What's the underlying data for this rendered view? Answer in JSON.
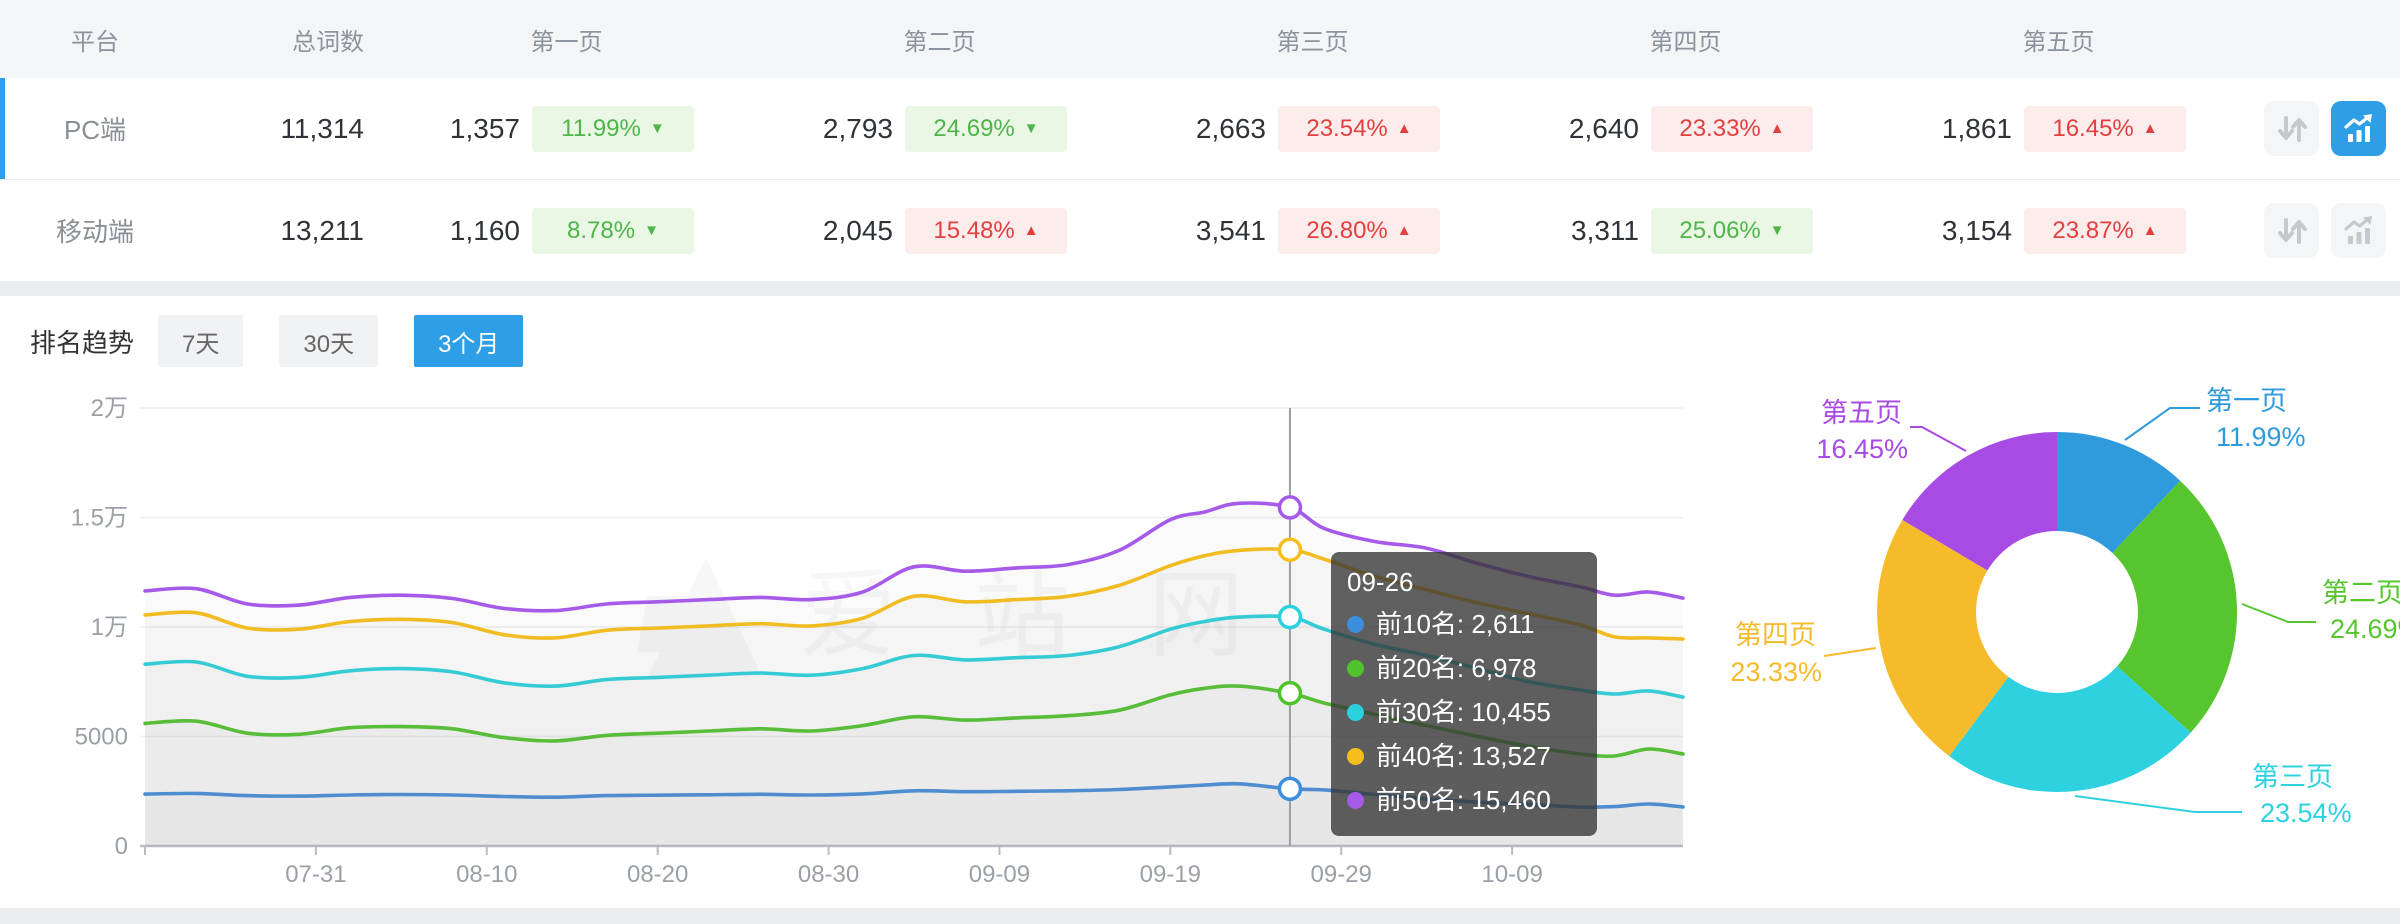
{
  "table": {
    "columns": [
      "平台",
      "总词数",
      "第一页",
      "第二页",
      "第三页",
      "第四页",
      "第五页"
    ],
    "rows": [
      {
        "platform": "PC端",
        "total": "11,314",
        "selected": true,
        "chart_active": true,
        "pages": [
          {
            "count": "1,357",
            "pct": "11.99%",
            "dir": "down"
          },
          {
            "count": "2,793",
            "pct": "24.69%",
            "dir": "down"
          },
          {
            "count": "2,663",
            "pct": "23.54%",
            "dir": "up"
          },
          {
            "count": "2,640",
            "pct": "23.33%",
            "dir": "up"
          },
          {
            "count": "1,861",
            "pct": "16.45%",
            "dir": "up"
          }
        ]
      },
      {
        "platform": "移动端",
        "total": "13,211",
        "selected": false,
        "chart_active": false,
        "pages": [
          {
            "count": "1,160",
            "pct": "8.78%",
            "dir": "down"
          },
          {
            "count": "2,045",
            "pct": "15.48%",
            "dir": "up"
          },
          {
            "count": "3,541",
            "pct": "26.80%",
            "dir": "up"
          },
          {
            "count": "3,311",
            "pct": "25.06%",
            "dir": "down"
          },
          {
            "count": "3,154",
            "pct": "23.87%",
            "dir": "up"
          }
        ]
      }
    ]
  },
  "trend": {
    "label": "排名趋势",
    "tabs": [
      {
        "label": "7天",
        "active": false
      },
      {
        "label": "30天",
        "active": false
      },
      {
        "label": "3个月",
        "active": true
      }
    ]
  },
  "tooltip": {
    "title": "09-26",
    "rows": [
      {
        "label": "前10名",
        "value": "2,611"
      },
      {
        "label": "前20名",
        "value": "6,978"
      },
      {
        "label": "前30名",
        "value": "10,455"
      },
      {
        "label": "前40名",
        "value": "13,527"
      },
      {
        "label": "前50名",
        "value": "15,460"
      }
    ]
  },
  "watermark": {
    "text": "爱站网"
  },
  "colors": {
    "accent_blue": "#2E9FE6",
    "up_red": "#E23F3F",
    "down_green": "#4FB54A"
  },
  "chart_data": [
    {
      "type": "line",
      "title": "排名趋势 3个月",
      "ylim": [
        0,
        20000
      ],
      "y_ticks": [
        "0",
        "5000",
        "1万",
        "1.5万",
        "2万"
      ],
      "y_tick_values": [
        0,
        5000,
        10000,
        15000,
        20000
      ],
      "x_ticks": [
        "07-31",
        "08-10",
        "08-20",
        "08-30",
        "09-09",
        "09-19",
        "09-29",
        "10-09"
      ],
      "x_tick_days": [
        10,
        20,
        30,
        40,
        50,
        60,
        70,
        80
      ],
      "highlight_x": "09-26",
      "day_index": [
        0,
        3,
        6,
        9,
        12,
        15,
        18,
        21,
        24,
        27,
        30,
        33,
        36,
        39,
        42,
        45,
        48,
        51,
        54,
        57,
        60,
        62,
        64,
        67,
        69,
        72,
        75,
        78,
        81,
        84,
        86,
        88,
        90
      ],
      "x": [
        "07-21",
        "07-24",
        "07-27",
        "07-30",
        "08-02",
        "08-05",
        "08-08",
        "08-11",
        "08-14",
        "08-17",
        "08-20",
        "08-23",
        "08-26",
        "08-29",
        "09-01",
        "09-04",
        "09-07",
        "09-10",
        "09-13",
        "09-16",
        "09-19",
        "09-21",
        "09-23",
        "09-26",
        "09-28",
        "10-01",
        "10-04",
        "10-07",
        "10-10",
        "10-13",
        "10-15",
        "10-17",
        "10-19"
      ],
      "series": [
        {
          "name": "前10名",
          "color": "#3E8EDE",
          "values": [
            2370,
            2400,
            2300,
            2280,
            2330,
            2350,
            2330,
            2260,
            2230,
            2300,
            2320,
            2340,
            2360,
            2330,
            2380,
            2520,
            2480,
            2500,
            2520,
            2580,
            2700,
            2780,
            2840,
            2611,
            2560,
            2350,
            2150,
            2000,
            1900,
            1780,
            1800,
            1920,
            1780
          ]
        },
        {
          "name": "前20名",
          "color": "#4FC32A",
          "values": [
            5600,
            5700,
            5150,
            5100,
            5400,
            5450,
            5350,
            4950,
            4800,
            5050,
            5150,
            5250,
            5350,
            5250,
            5500,
            5900,
            5750,
            5850,
            5950,
            6200,
            6900,
            7200,
            7300,
            6978,
            6530,
            6000,
            5500,
            5000,
            4550,
            4200,
            4110,
            4430,
            4200
          ]
        },
        {
          "name": "前30名",
          "color": "#2BD1DD",
          "values": [
            8300,
            8400,
            7750,
            7700,
            8000,
            8100,
            7950,
            7450,
            7300,
            7600,
            7700,
            7800,
            7900,
            7800,
            8100,
            8700,
            8500,
            8600,
            8700,
            9100,
            9900,
            10250,
            10450,
            10455,
            9900,
            9200,
            8700,
            8100,
            7500,
            7120,
            6940,
            7080,
            6800
          ]
        },
        {
          "name": "前40名",
          "color": "#F6BE1C",
          "values": [
            10550,
            10650,
            9950,
            9900,
            10250,
            10350,
            10200,
            9650,
            9500,
            9850,
            9950,
            10050,
            10150,
            10050,
            10400,
            11400,
            11150,
            11250,
            11400,
            11900,
            12800,
            13250,
            13500,
            13527,
            13100,
            12300,
            11700,
            11100,
            10600,
            10090,
            9550,
            9500,
            9450
          ]
        },
        {
          "name": "前50名",
          "color": "#A55BE8",
          "values": [
            11650,
            11750,
            11050,
            11000,
            11350,
            11450,
            11300,
            10850,
            10750,
            11050,
            11150,
            11250,
            11350,
            11250,
            11600,
            12750,
            12550,
            12700,
            12850,
            13500,
            14900,
            15250,
            15650,
            15460,
            14500,
            13900,
            13600,
            12900,
            12300,
            11830,
            11450,
            11600,
            11320
          ]
        }
      ]
    },
    {
      "type": "pie",
      "labels": [
        "第一页",
        "第二页",
        "第三页",
        "第四页",
        "第五页"
      ],
      "values": [
        11.99,
        24.69,
        23.54,
        23.33,
        16.45
      ],
      "unit": "%",
      "colors": [
        "#2F9BDC",
        "#56C52E",
        "#2ED1DF",
        "#F6BB2B",
        "#A84AE4"
      ]
    }
  ]
}
